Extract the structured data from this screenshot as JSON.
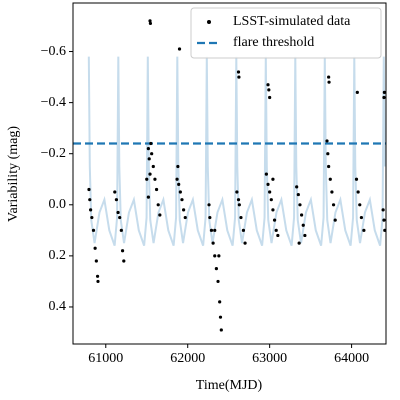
{
  "chart_data": {
    "type": "scatter",
    "x_label": "Time(MJD)",
    "y_label": "Variability (mag)",
    "xlim": [
      60600,
      64420
    ],
    "ylim": [
      -0.79,
      0.545
    ],
    "y_inverted": true,
    "xticks": [
      61000,
      62000,
      63000,
      64000
    ],
    "yticks": [
      {
        "value": -0.6,
        "label": "−0.6"
      },
      {
        "value": -0.4,
        "label": "−0.4"
      },
      {
        "value": -0.2,
        "label": "−0.2"
      },
      {
        "value": 0.0,
        "label": "0.0"
      },
      0.2,
      0.4
    ],
    "legend": "upper right",
    "series": [
      {
        "type": "line",
        "color": "#c6dcec",
        "x": [
          60793,
          60805,
          60823,
          60863,
          60923,
          60983,
          61043,
          61108,
          61138,
          61153,
          61165,
          61183,
          61223,
          61283,
          61343,
          61403,
          61468,
          61498,
          61513,
          61525,
          61543,
          61583,
          61643,
          61703,
          61763,
          61828,
          61858,
          61873,
          61885,
          61903,
          61943,
          62003,
          62063,
          62123,
          62188,
          62218,
          62233,
          62245,
          62263,
          62303,
          62363,
          62423,
          62483,
          62548,
          62578,
          62593,
          62605,
          62623,
          62663,
          62723,
          62783,
          62843,
          62908,
          62938,
          62953,
          62965,
          62983,
          63023,
          63083,
          63143,
          63203,
          63268,
          63298,
          63313,
          63325,
          63343,
          63383,
          63443,
          63503,
          63563,
          63628,
          63658,
          63673,
          63685,
          63703,
          63743,
          63803,
          63863,
          63923,
          63988,
          64018,
          64033,
          64045,
          64063,
          64103,
          64163,
          64223,
          64283,
          64348,
          64378,
          64393,
          64405
        ],
        "values": [
          -0.58,
          -0.15,
          0.06,
          0.15,
          0.03,
          -0.02,
          0.1,
          0.16,
          0.05,
          -0.58,
          -0.15,
          0.06,
          0.15,
          0.03,
          -0.02,
          0.1,
          0.16,
          0.05,
          -0.58,
          -0.15,
          0.06,
          0.15,
          0.03,
          -0.02,
          0.1,
          0.16,
          0.05,
          -0.58,
          -0.15,
          0.06,
          0.15,
          0.03,
          -0.02,
          0.1,
          0.16,
          0.05,
          -0.58,
          -0.15,
          0.06,
          0.15,
          0.03,
          -0.02,
          0.1,
          0.16,
          0.05,
          -0.58,
          -0.15,
          0.06,
          0.15,
          0.03,
          -0.02,
          0.1,
          0.16,
          0.05,
          -0.58,
          -0.15,
          0.06,
          0.15,
          0.03,
          -0.02,
          0.1,
          0.16,
          0.05,
          -0.58,
          -0.15,
          0.06,
          0.15,
          0.03,
          -0.02,
          0.1,
          0.16,
          0.05,
          -0.58,
          -0.15,
          0.06,
          0.15,
          0.03,
          -0.02,
          0.1,
          0.16,
          0.05,
          -0.58,
          -0.15,
          0.06,
          0.15,
          0.03,
          -0.02,
          0.1,
          0.16,
          0.05,
          -0.58,
          -0.15
        ]
      },
      {
        "type": "scatter",
        "name": "LSST-simulated data",
        "color": "#000000",
        "x": [
          60795,
          60805,
          60815,
          60830,
          60850,
          60870,
          60885,
          60900,
          60905,
          61110,
          61130,
          61150,
          61170,
          61190,
          61205,
          61220,
          61540,
          61545,
          61520,
          61530,
          61550,
          61560,
          61540,
          61500,
          61520,
          61580,
          61600,
          61620,
          61640,
          61660,
          61900,
          61870,
          61890,
          61910,
          61930,
          61950,
          61970,
          61880,
          62270,
          62290,
          62310,
          62330,
          62350,
          62370,
          62390,
          62400,
          62410,
          62380,
          62330,
          62260,
          62620,
          62625,
          62600,
          62620,
          62650,
          62680,
          62700,
          62630,
          62980,
          62990,
          63000,
          62960,
          62980,
          63000,
          63020,
          63040,
          63060,
          63080,
          63100,
          63040,
          63330,
          63350,
          63370,
          63390,
          63410,
          63430,
          63360,
          63720,
          63725,
          63700,
          63710,
          63720,
          63740,
          63760,
          63780,
          63800,
          64070,
          64060,
          64080,
          64100,
          64120,
          64150,
          64395,
          64400,
          64385,
          64395,
          64405
        ],
        "values": [
          -0.06,
          -0.02,
          0.02,
          0.05,
          0.1,
          0.17,
          0.22,
          0.28,
          0.3,
          -0.05,
          -0.02,
          0.03,
          0.05,
          0.1,
          0.18,
          0.22,
          -0.72,
          -0.71,
          -0.22,
          -0.18,
          -0.24,
          -0.2,
          -0.12,
          -0.1,
          -0.03,
          -0.15,
          -0.1,
          -0.06,
          0.0,
          0.04,
          -0.61,
          -0.1,
          -0.08,
          -0.05,
          -0.02,
          0.02,
          0.05,
          -0.15,
          0.05,
          0.1,
          0.15,
          0.2,
          0.25,
          0.3,
          0.38,
          0.44,
          0.49,
          0.2,
          0.1,
          0.0,
          -0.52,
          -0.5,
          -0.05,
          -0.02,
          0.05,
          0.1,
          0.15,
          0.0,
          -0.47,
          -0.45,
          -0.42,
          -0.12,
          -0.08,
          -0.05,
          -0.02,
          0.02,
          0.06,
          0.1,
          0.12,
          -0.1,
          -0.07,
          -0.04,
          0.0,
          0.04,
          0.08,
          0.12,
          0.15,
          -0.5,
          -0.48,
          -0.25,
          -0.2,
          -0.15,
          -0.1,
          -0.05,
          0.0,
          0.06,
          -0.44,
          -0.1,
          -0.05,
          0.0,
          0.05,
          0.1,
          -0.42,
          -0.44,
          0.02,
          0.06,
          0.1
        ]
      }
    ],
    "threshold": {
      "name": "flare threshold",
      "value": -0.24,
      "color": "#1f77b4",
      "style": "dashed"
    }
  }
}
